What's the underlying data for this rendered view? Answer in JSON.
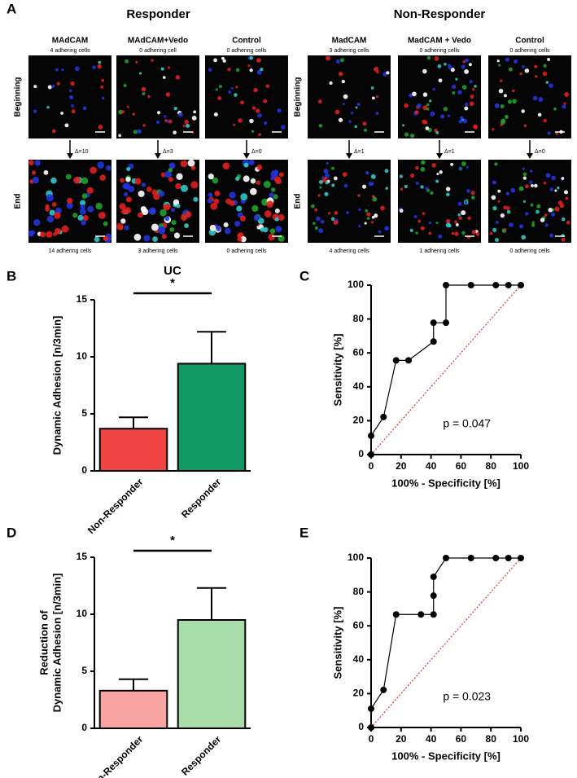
{
  "panel_a": {
    "label": "A",
    "rows": [
      "Beginning",
      "End"
    ],
    "groups": [
      {
        "title": "Responder",
        "columns": [
          {
            "name": "MAdCAM",
            "top": "4 adhering cells",
            "delta": "Δ=10",
            "bottom": "14 adhering cells"
          },
          {
            "name": "MAdCAM+Vedo",
            "top": "0 adhering cell",
            "delta": "Δ=3",
            "bottom": "3 adhering cells"
          },
          {
            "name": "Control",
            "top": "0 adhering cells",
            "delta": "Δ=0",
            "bottom": "0 adhering cells"
          }
        ]
      },
      {
        "title": "Non-Responder",
        "columns": [
          {
            "name": "MadCAM",
            "top": "3 adhering cells",
            "delta": "Δ=1",
            "bottom": "4 adhering cells"
          },
          {
            "name": "MadCAM + Vedo",
            "top": "0 adhering cells",
            "delta": "Δ=1",
            "bottom": "1 adhering cells"
          },
          {
            "name": "Control",
            "top": "0 adhering cells",
            "delta": "Δ=0",
            "bottom": "0 adhering cells"
          }
        ]
      }
    ]
  },
  "chart_data": [
    {
      "type": "bar",
      "panel": "B",
      "title": "UC",
      "categories": [
        "Non-Responder",
        "Responder"
      ],
      "values": [
        3.7,
        9.4
      ],
      "errors": [
        1.0,
        2.8
      ],
      "colors": [
        "#f04444",
        "#119966"
      ],
      "ylabel": [
        "Dynamic Adhesion [n/3min]"
      ],
      "ylim": [
        0,
        15
      ],
      "yticks": [
        0,
        5,
        10,
        15
      ],
      "annotation": "*"
    },
    {
      "type": "line",
      "panel": "C",
      "x": [
        0,
        0,
        8.3,
        16.7,
        25,
        41.7,
        41.7,
        50,
        50,
        66.7,
        83.3,
        91.7,
        100
      ],
      "values": [
        0,
        11.1,
        22.2,
        55.6,
        55.6,
        66.7,
        77.8,
        77.8,
        100,
        100,
        100,
        100,
        100
      ],
      "xlabel": "100% - Specificity [%]",
      "ylabel": "Sensitivity [%]",
      "xlim": [
        0,
        100
      ],
      "ylim": [
        0,
        100
      ],
      "xticks": [
        0,
        20,
        40,
        60,
        80,
        100
      ],
      "yticks": [
        0,
        20,
        40,
        60,
        80,
        100
      ],
      "diagonal": true,
      "color": "#000000",
      "annotation": "p = 0.047"
    },
    {
      "type": "bar",
      "panel": "D",
      "categories": [
        "Non-Responder",
        "Responder"
      ],
      "values": [
        3.3,
        9.5
      ],
      "errors": [
        1.0,
        2.8
      ],
      "colors": [
        "#f9a3a3",
        "#a8dca8"
      ],
      "ylabel": [
        "Reduction of",
        "Dynamic Adhesion [n/3min]"
      ],
      "ylim": [
        0,
        15
      ],
      "yticks": [
        0,
        5,
        10,
        15
      ],
      "annotation": "*"
    },
    {
      "type": "line",
      "panel": "E",
      "x": [
        0,
        0,
        8.3,
        16.7,
        33.3,
        41.7,
        41.7,
        41.7,
        50,
        66.7,
        83.3,
        91.7,
        100
      ],
      "values": [
        0,
        11.1,
        22.2,
        66.7,
        66.7,
        66.7,
        77.8,
        88.9,
        100,
        100,
        100,
        100,
        100
      ],
      "xlabel": "100% - Specificity [%]",
      "ylabel": "Sensitivity [%]",
      "xlim": [
        0,
        100
      ],
      "ylim": [
        0,
        100
      ],
      "xticks": [
        0,
        20,
        40,
        60,
        80,
        100
      ],
      "yticks": [
        0,
        20,
        40,
        60,
        80,
        100
      ],
      "diagonal": true,
      "color": "#000000",
      "annotation": "p = 0.023"
    }
  ]
}
